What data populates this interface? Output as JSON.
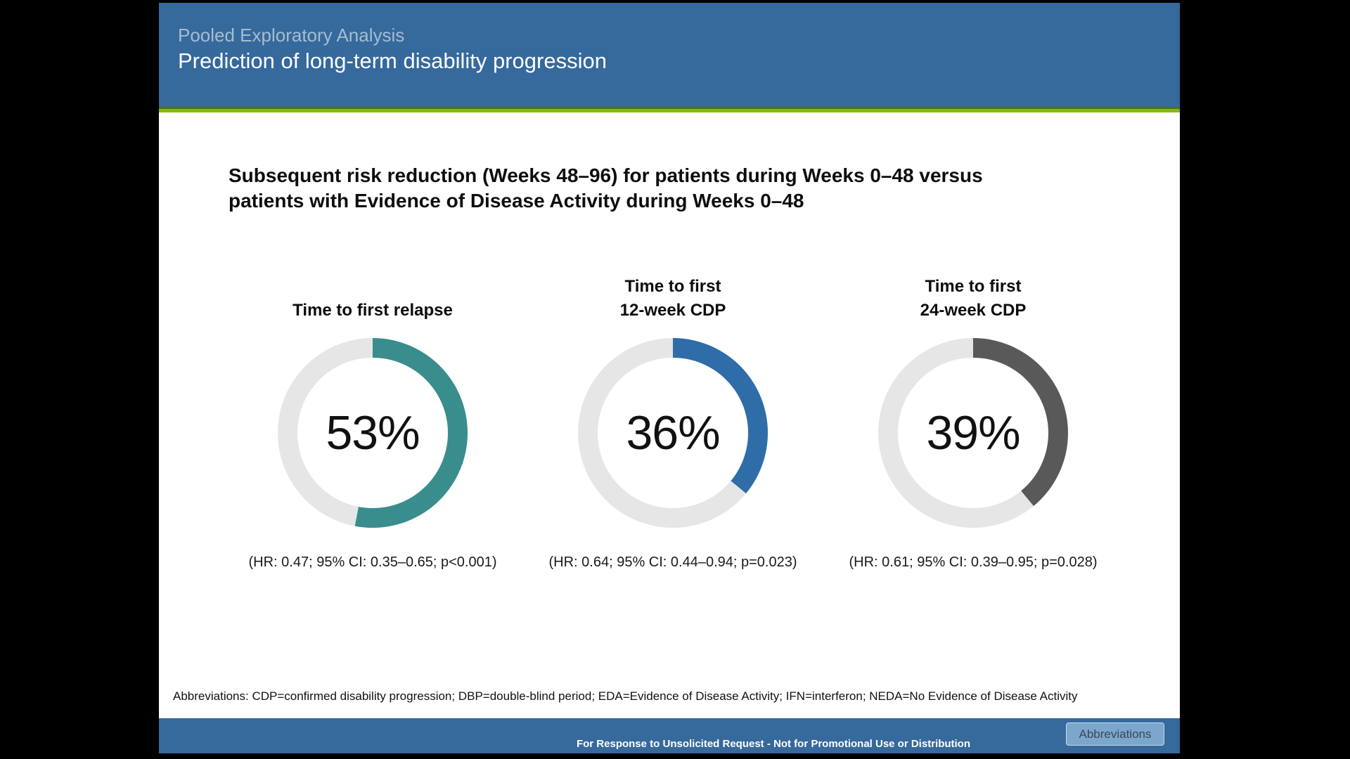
{
  "header": {
    "eyebrow": "Pooled Exploratory Analysis",
    "title": "Prediction of long-term disability progression"
  },
  "heading": {
    "line1": "Subsequent risk reduction (Weeks 48–96) for patients during Weeks 0–48 versus",
    "line2": "patients with Evidence of Disease Activity during Weeks 0–48"
  },
  "donuts": [
    {
      "title": "Time to first relapse",
      "value": 53,
      "label": "53%",
      "color": "#398D8D",
      "stat": "(HR: 0.47; 95% CI: 0.35–0.65; p<0.001)"
    },
    {
      "title": "Time to first\n12-week CDP",
      "value": 36,
      "label": "36%",
      "color": "#2E6DA8",
      "stat": "(HR: 0.64; 95% CI: 0.44–0.94; p=0.023)"
    },
    {
      "title": "Time to first\n24-week CDP",
      "value": 39,
      "label": "39%",
      "color": "#595959",
      "stat": "(HR: 0.61; 95% CI: 0.39–0.95; p=0.028)"
    }
  ],
  "chart_data": [
    {
      "type": "pie",
      "subtype": "donut",
      "title": "Time to first relapse",
      "labels": [
        "risk reduction",
        "remainder"
      ],
      "values": [
        53,
        47
      ],
      "center_label": "53%",
      "annotation": "(HR: 0.47; 95% CI: 0.35–0.65; p<0.001)",
      "slice_colors": [
        "#398D8D",
        "#E6E6E6"
      ],
      "start_angle_deg": 0,
      "direction": "clockwise"
    },
    {
      "type": "pie",
      "subtype": "donut",
      "title": "Time to first 12-week CDP",
      "labels": [
        "risk reduction",
        "remainder"
      ],
      "values": [
        36,
        64
      ],
      "center_label": "36%",
      "annotation": "(HR: 0.64; 95% CI: 0.44–0.94; p=0.023)",
      "slice_colors": [
        "#2E6DA8",
        "#E6E6E6"
      ],
      "start_angle_deg": 0,
      "direction": "clockwise"
    },
    {
      "type": "pie",
      "subtype": "donut",
      "title": "Time to first 24-week CDP",
      "labels": [
        "risk reduction",
        "remainder"
      ],
      "values": [
        39,
        61
      ],
      "center_label": "39%",
      "annotation": "(HR: 0.61; 95% CI: 0.39–0.95; p=0.028)",
      "slice_colors": [
        "#595959",
        "#E6E6E6"
      ],
      "start_angle_deg": 0,
      "direction": "clockwise"
    }
  ],
  "colors": {
    "header_blue": "#36699C",
    "accent_green": "#85BB0B",
    "track": "#E6E6E6",
    "teal_arc": "#398D8D",
    "blue_arc": "#2E6DA8",
    "gray_arc": "#595959"
  },
  "footnote": "Abbreviations: CDP=confirmed disability progression; DBP=double-blind period; EDA=Evidence of Disease Activity; IFN=interferon; NEDA=No Evidence of Disease Activity",
  "footer": {
    "disclaimer": "For Response to Unsolicited Request - Not for Promotional Use or Distribution",
    "abbreviations_button": "Abbreviations"
  }
}
